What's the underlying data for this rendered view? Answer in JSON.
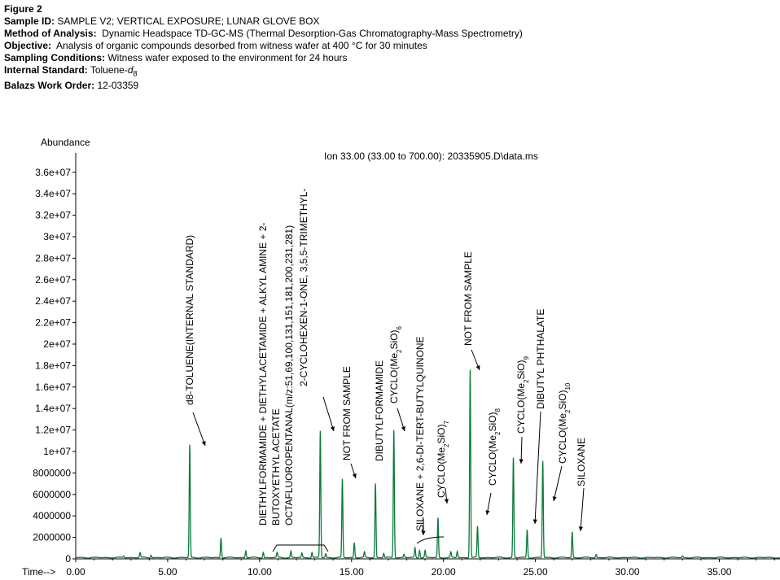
{
  "header": {
    "figure": "Figure 2",
    "sample_id_label": "Sample ID:",
    "sample_id": "SAMPLE V2; VERTICAL EXPOSURE; LUNAR GLOVE BOX",
    "method_label": "Method of Analysis:",
    "method": "Dynamic Headspace TD-GC-MS (Thermal Desorption-Gas Chromatography-Mass Spectrometry)",
    "objective_label": "Objective:",
    "objective": "Analysis of organic compounds desorbed from witness wafer at 400 °C for 30 minutes",
    "sampling_label": "Sampling Conditions:",
    "sampling": "Witness wafer exposed to the environment for 24 hours",
    "standard_label": "Internal Standard:",
    "standard_prefix": "Toluene-",
    "standard_sub": "d",
    "standard_subsub": "8",
    "work_order_label": "Balazs Work Order:",
    "work_order": "12-03359"
  },
  "chart_data": {
    "type": "line",
    "ylabel": "Abundance",
    "xlabel": "Time-->",
    "ion_label": "Ion  33.00 (33.00 to 700.00): 20335905.D\\data.ms",
    "xlim": [
      0,
      38.3
    ],
    "ylim": [
      0,
      37500000
    ],
    "x_ticks": [
      0,
      5,
      10,
      15,
      20,
      25,
      30,
      35
    ],
    "x_tick_labels": [
      "0.00",
      "5.00",
      "10.00",
      "15.00",
      "20.00",
      "25.00",
      "30.00",
      "35.00"
    ],
    "y_ticks": [
      0,
      2000000,
      4000000,
      6000000,
      8000000,
      10000000,
      12000000,
      14000000,
      16000000,
      18000000,
      20000000,
      22000000,
      24000000,
      26000000,
      28000000,
      30000000,
      32000000,
      34000000,
      36000000
    ],
    "y_tick_labels": [
      "0",
      "2000000",
      "4000000",
      "6000000",
      "8000000",
      "1e+07",
      "1.2e+07",
      "1.4e+07",
      "1.6e+07",
      "1.8e+07",
      "2e+07",
      "2.2e+07",
      "2.4e+07",
      "2.6e+07",
      "2.8e+07",
      "3e+07",
      "3.2e+07",
      "3.4e+07",
      "3.6e+07"
    ],
    "baseline": 120000,
    "peaks": [
      {
        "rt": 2.6,
        "height": 150000
      },
      {
        "rt": 3.5,
        "height": 450000
      },
      {
        "rt": 4.1,
        "height": 250000
      },
      {
        "rt": 6.2,
        "height": 10500000
      },
      {
        "rt": 7.9,
        "height": 1850000
      },
      {
        "rt": 9.25,
        "height": 650000
      },
      {
        "rt": 10.2,
        "height": 500000
      },
      {
        "rt": 10.95,
        "height": 450000
      },
      {
        "rt": 11.7,
        "height": 600000
      },
      {
        "rt": 12.3,
        "height": 400000
      },
      {
        "rt": 12.85,
        "height": 500000
      },
      {
        "rt": 13.3,
        "height": 11800000
      },
      {
        "rt": 13.6,
        "height": 350000
      },
      {
        "rt": 14.5,
        "height": 7300000
      },
      {
        "rt": 15.15,
        "height": 1400000
      },
      {
        "rt": 15.7,
        "height": 500000
      },
      {
        "rt": 16.3,
        "height": 6900000
      },
      {
        "rt": 16.75,
        "height": 400000
      },
      {
        "rt": 17.3,
        "height": 11900000
      },
      {
        "rt": 17.85,
        "height": 300000
      },
      {
        "rt": 18.45,
        "height": 900000
      },
      {
        "rt": 18.7,
        "height": 700000
      },
      {
        "rt": 19.0,
        "height": 650000
      },
      {
        "rt": 19.7,
        "height": 3700000
      },
      {
        "rt": 20.4,
        "height": 500000
      },
      {
        "rt": 20.75,
        "height": 600000
      },
      {
        "rt": 21.45,
        "height": 17500000
      },
      {
        "rt": 21.85,
        "height": 2900000
      },
      {
        "rt": 23.8,
        "height": 9300000
      },
      {
        "rt": 24.55,
        "height": 2600000
      },
      {
        "rt": 25.4,
        "height": 9000000
      },
      {
        "rt": 27.0,
        "height": 2400000
      },
      {
        "rt": 28.3,
        "height": 300000
      },
      {
        "rt": 33.0,
        "height": 150000
      }
    ],
    "annotations": [
      {
        "text": "d8-TOLUENE(INTERNAL STANDARD)"
      },
      {
        "text": "DIETHYLFORMAMIDE + DIETHYLACETAMIDE + ALKYL AMINE + 2-"
      },
      {
        "text": "BUTOXYETHYL ACETATE"
      },
      {
        "text": "OCTAFLUOROPENTANAL(m/z:51,69,100,131,151,181,200,231,281)"
      },
      {
        "text": "2-CYCLOHEXEN-1-ONE, 3,5,5-TRIMETHYL-"
      },
      {
        "text": "NOT FROM SAMPLE"
      },
      {
        "text": "DIBUTYLFORMAMIDE"
      },
      {
        "text": "CYCLO(Me",
        "sub1": "2",
        "mid": "SiO)",
        "sub2": "6"
      },
      {
        "text": "SILOXANE + 2,6-DI-TERT-BUTYLQUINONE"
      },
      {
        "text": "CYCLO(Me",
        "sub1": "2",
        "mid": "SiO)",
        "sub2": "7"
      },
      {
        "text": "NOT FROM SAMPLE"
      },
      {
        "text": "CYCLO(Me",
        "sub1": "2",
        "mid": "SiO)",
        "sub2": "8"
      },
      {
        "text": "CYCLO(Me",
        "sub1": "2",
        "mid": "SiO)",
        "sub2": "9"
      },
      {
        "text": "DIBUTYL PHTHALATE"
      },
      {
        "text": "CYCLO(Me",
        "sub1": "2",
        "mid": "SiO)",
        "sub2": "10"
      },
      {
        "text": "SILOXANE"
      }
    ],
    "colors": {
      "trace": "#0a7a3a",
      "axis": "#000000",
      "text": "#000000"
    }
  }
}
